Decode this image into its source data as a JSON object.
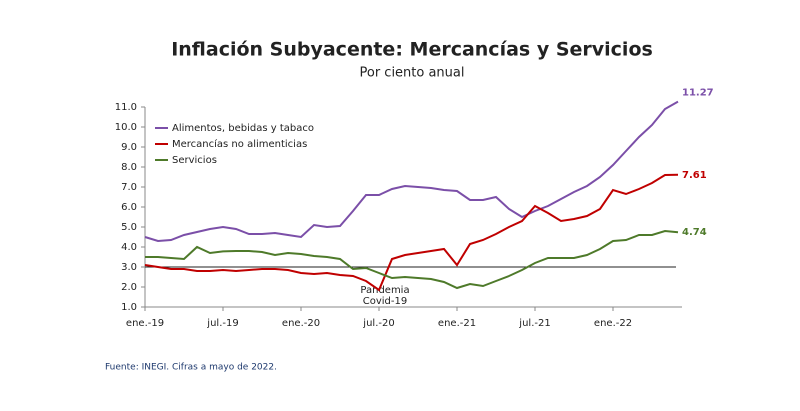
{
  "chart_data": {
    "type": "line",
    "title": "Inflación Subyacente: Mercancías y Servicios",
    "subtitle": "Por ciento anual",
    "source": "Fuente: INEGI. Cifras a mayo de 2022.",
    "annotation": [
      "Pandemia",
      "Covid-19"
    ],
    "categories": [
      "ene.-19",
      null,
      null,
      null,
      null,
      null,
      "jul.-19",
      null,
      null,
      null,
      null,
      null,
      "ene.-20",
      null,
      null,
      null,
      null,
      null,
      "jul.-20",
      null,
      null,
      null,
      null,
      null,
      "ene.-21",
      null,
      null,
      null,
      null,
      null,
      "jul.-21",
      null,
      null,
      null,
      null,
      null,
      "ene.-22",
      null,
      null,
      null,
      null,
      null
    ],
    "series": [
      {
        "name": "Alimentos, bebidas y tabaco",
        "color": "#7b4fa8",
        "values": [
          4.5,
          4.3,
          4.35,
          4.6,
          4.75,
          4.9,
          5.0,
          4.9,
          4.65,
          4.65,
          4.7,
          4.6,
          4.5,
          5.1,
          5.0,
          5.05,
          5.8,
          6.6,
          6.6,
          6.9,
          7.05,
          7.0,
          6.95,
          6.85,
          6.8,
          6.35,
          6.35,
          6.5,
          5.9,
          5.5,
          5.8,
          6.05,
          6.4,
          6.75,
          7.05,
          7.5,
          8.1,
          8.8,
          9.5,
          10.1,
          10.9,
          11.27
        ]
      },
      {
        "name": "Mercancías no alimenticias",
        "color": "#c00000",
        "values": [
          3.1,
          3.0,
          2.9,
          2.9,
          2.8,
          2.8,
          2.85,
          2.8,
          2.85,
          2.9,
          2.9,
          2.85,
          2.7,
          2.65,
          2.7,
          2.6,
          2.55,
          2.3,
          1.85,
          3.4,
          3.6,
          3.7,
          3.8,
          3.9,
          3.1,
          4.15,
          4.35,
          4.65,
          5.0,
          5.3,
          6.05,
          5.7,
          5.3,
          5.4,
          5.55,
          5.9,
          6.85,
          6.65,
          6.9,
          7.2,
          7.6,
          7.61
        ]
      },
      {
        "name": "Servicios",
        "color": "#4e7a2a",
        "values": [
          3.5,
          3.5,
          3.45,
          3.4,
          4.0,
          3.7,
          3.78,
          3.8,
          3.8,
          3.75,
          3.6,
          3.7,
          3.65,
          3.55,
          3.5,
          3.4,
          2.9,
          2.95,
          2.7,
          2.45,
          2.5,
          2.45,
          2.4,
          2.25,
          1.95,
          2.15,
          2.05,
          2.3,
          2.55,
          2.85,
          3.2,
          3.45,
          3.45,
          3.45,
          3.6,
          3.9,
          4.3,
          4.35,
          4.6,
          4.6,
          4.8,
          4.74
        ]
      }
    ],
    "reference_line": 3,
    "ylim": [
      1,
      11
    ],
    "yticks": [
      {
        "value": 1,
        "label": "1.0"
      },
      {
        "value": 2,
        "label": "2.0"
      },
      {
        "value": 3,
        "label": "3.0"
      },
      {
        "value": 4,
        "label": "4.0"
      },
      {
        "value": 5,
        "label": "5.0"
      },
      {
        "value": 6,
        "label": "6.0"
      },
      {
        "value": 7,
        "label": "7.0"
      },
      {
        "value": 8,
        "label": "8.0"
      },
      {
        "value": 9,
        "label": "9.0"
      },
      {
        "value": 10,
        "label": "10.0"
      },
      {
        "value": 11,
        "label": "11.0"
      }
    ],
    "legend": "upper left"
  }
}
